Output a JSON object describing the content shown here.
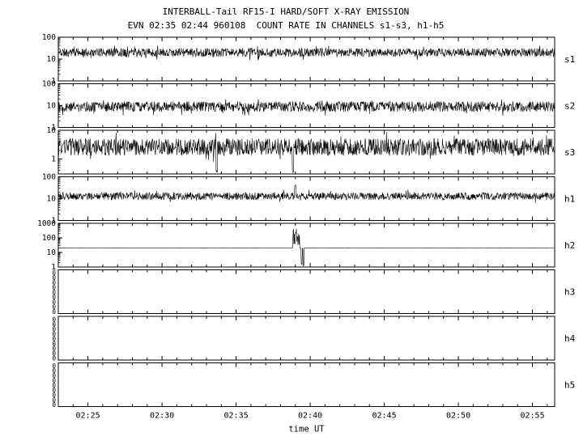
{
  "title1": "INTERBALL-Tail RF15-I HARD/SOFT X-RAY EMISSION",
  "title2": "EVN 02:35 02:44 960108  COUNT RATE IN CHANNELS s1-s3, h1-h5",
  "xlabel": "time UT",
  "chart_data": {
    "type": "line",
    "title": "INTERBALL-Tail RF15-I HARD/SOFT X-RAY EMISSION",
    "subtitle": "EVN 02:35 02:44 960108  COUNT RATE IN CHANNELS s1-s3, h1-h5",
    "xlabel": "time UT",
    "axes_color": "#000000",
    "line_color": "#000000",
    "x_axis": {
      "start_minute": 143.0,
      "end_minute": 176.5,
      "minor_step_minutes": 1,
      "major_ticks": [
        {
          "minute": 145,
          "label": "02:25"
        },
        {
          "minute": 150,
          "label": "02:30"
        },
        {
          "minute": 155,
          "label": "02:35"
        },
        {
          "minute": 160,
          "label": "02:40"
        },
        {
          "minute": 165,
          "label": "02:45"
        },
        {
          "minute": 170,
          "label": "02:50"
        },
        {
          "minute": 175,
          "label": "02:55"
        }
      ]
    },
    "panels": [
      {
        "label": "s1",
        "scale": "log",
        "ylim": [
          1,
          100
        ],
        "ytick_labels": [
          "100",
          "10",
          "1"
        ],
        "baseline": 20,
        "noise_log_amp": 0.2,
        "seed": 11,
        "spikes": [],
        "bursts": [],
        "empty": false
      },
      {
        "label": "s2",
        "scale": "log",
        "ylim": [
          1,
          100
        ],
        "ytick_labels": [
          "100",
          "10",
          "1"
        ],
        "baseline": 9,
        "noise_log_amp": 0.24,
        "seed": 22,
        "spikes": [],
        "bursts": [],
        "empty": false
      },
      {
        "label": "s3",
        "scale": "log",
        "ylim": [
          0.3,
          10
        ],
        "ytick_labels": [
          "10",
          "1"
        ],
        "baseline": 2.6,
        "noise_log_amp": 0.3,
        "seed": 33,
        "spikes": [
          {
            "t": 153.7,
            "v": 0.36,
            "w": 0.1
          },
          {
            "t": 158.85,
            "v": 0.34,
            "w": 0.1
          }
        ],
        "bursts": [],
        "empty": false
      },
      {
        "label": "h1",
        "scale": "log",
        "ylim": [
          1,
          100
        ],
        "ytick_labels": [
          "100",
          "10",
          "1"
        ],
        "baseline": 13,
        "noise_log_amp": 0.17,
        "seed": 44,
        "spikes": [
          {
            "t": 159.0,
            "v": 40,
            "w": 0.1
          }
        ],
        "bursts": [],
        "empty": false
      },
      {
        "label": "h2",
        "scale": "log",
        "ylim": [
          1,
          1000
        ],
        "ytick_labels": [
          "1000",
          "100",
          "10",
          "1"
        ],
        "baseline": 20,
        "noise_log_amp": 0.005,
        "seed": 55,
        "spikes": [
          {
            "t": 159.42,
            "v": 1.6,
            "w": 0.07
          },
          {
            "t": 159.56,
            "v": 1.3,
            "w": 0.07
          }
        ],
        "bursts": [
          {
            "start": 158.82,
            "end": 159.3,
            "lo": 25,
            "hi": 430
          }
        ],
        "empty": false
      },
      {
        "label": "h3",
        "scale": "log",
        "empty": true,
        "zero_label": "0",
        "zero_label_count": 9
      },
      {
        "label": "h4",
        "scale": "log",
        "empty": true,
        "zero_label": "0",
        "zero_label_count": 9
      },
      {
        "label": "h5",
        "scale": "log",
        "empty": true,
        "zero_label": "0",
        "zero_label_count": 9
      }
    ]
  }
}
